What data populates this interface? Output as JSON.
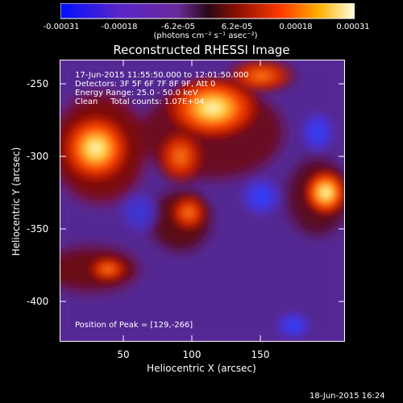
{
  "colorbar": {
    "ticks": [
      "-0.00031",
      "-0.00018",
      "-6.2e-05",
      "6.2e-05",
      "0.00018",
      "0.00031"
    ],
    "unit": "(photons cm⁻² s⁻¹ asec⁻²)"
  },
  "title": "Reconstructed RHESSI Image",
  "annotations": {
    "time": "17-Jun-2015 11:55:50.000 to 12:01:50.000",
    "detectors": "Detectors: 3F 5F 6F 7F 8F 9F, Att 0",
    "energy": "Energy Range: 25.0 - 50.0 keV",
    "clean": "Clean     Total counts: 1.07E+04",
    "peak": "Position of Peak = [129,-266]"
  },
  "axes": {
    "xlabel": "Heliocentric X (arcsec)",
    "ylabel": "Heliocentric Y (arcsec)",
    "xticks": [
      "50",
      "100",
      "150"
    ],
    "yticks": [
      "-250",
      "-300",
      "-350",
      "-400"
    ]
  },
  "footer": "18-Jun-2015 16:24"
}
